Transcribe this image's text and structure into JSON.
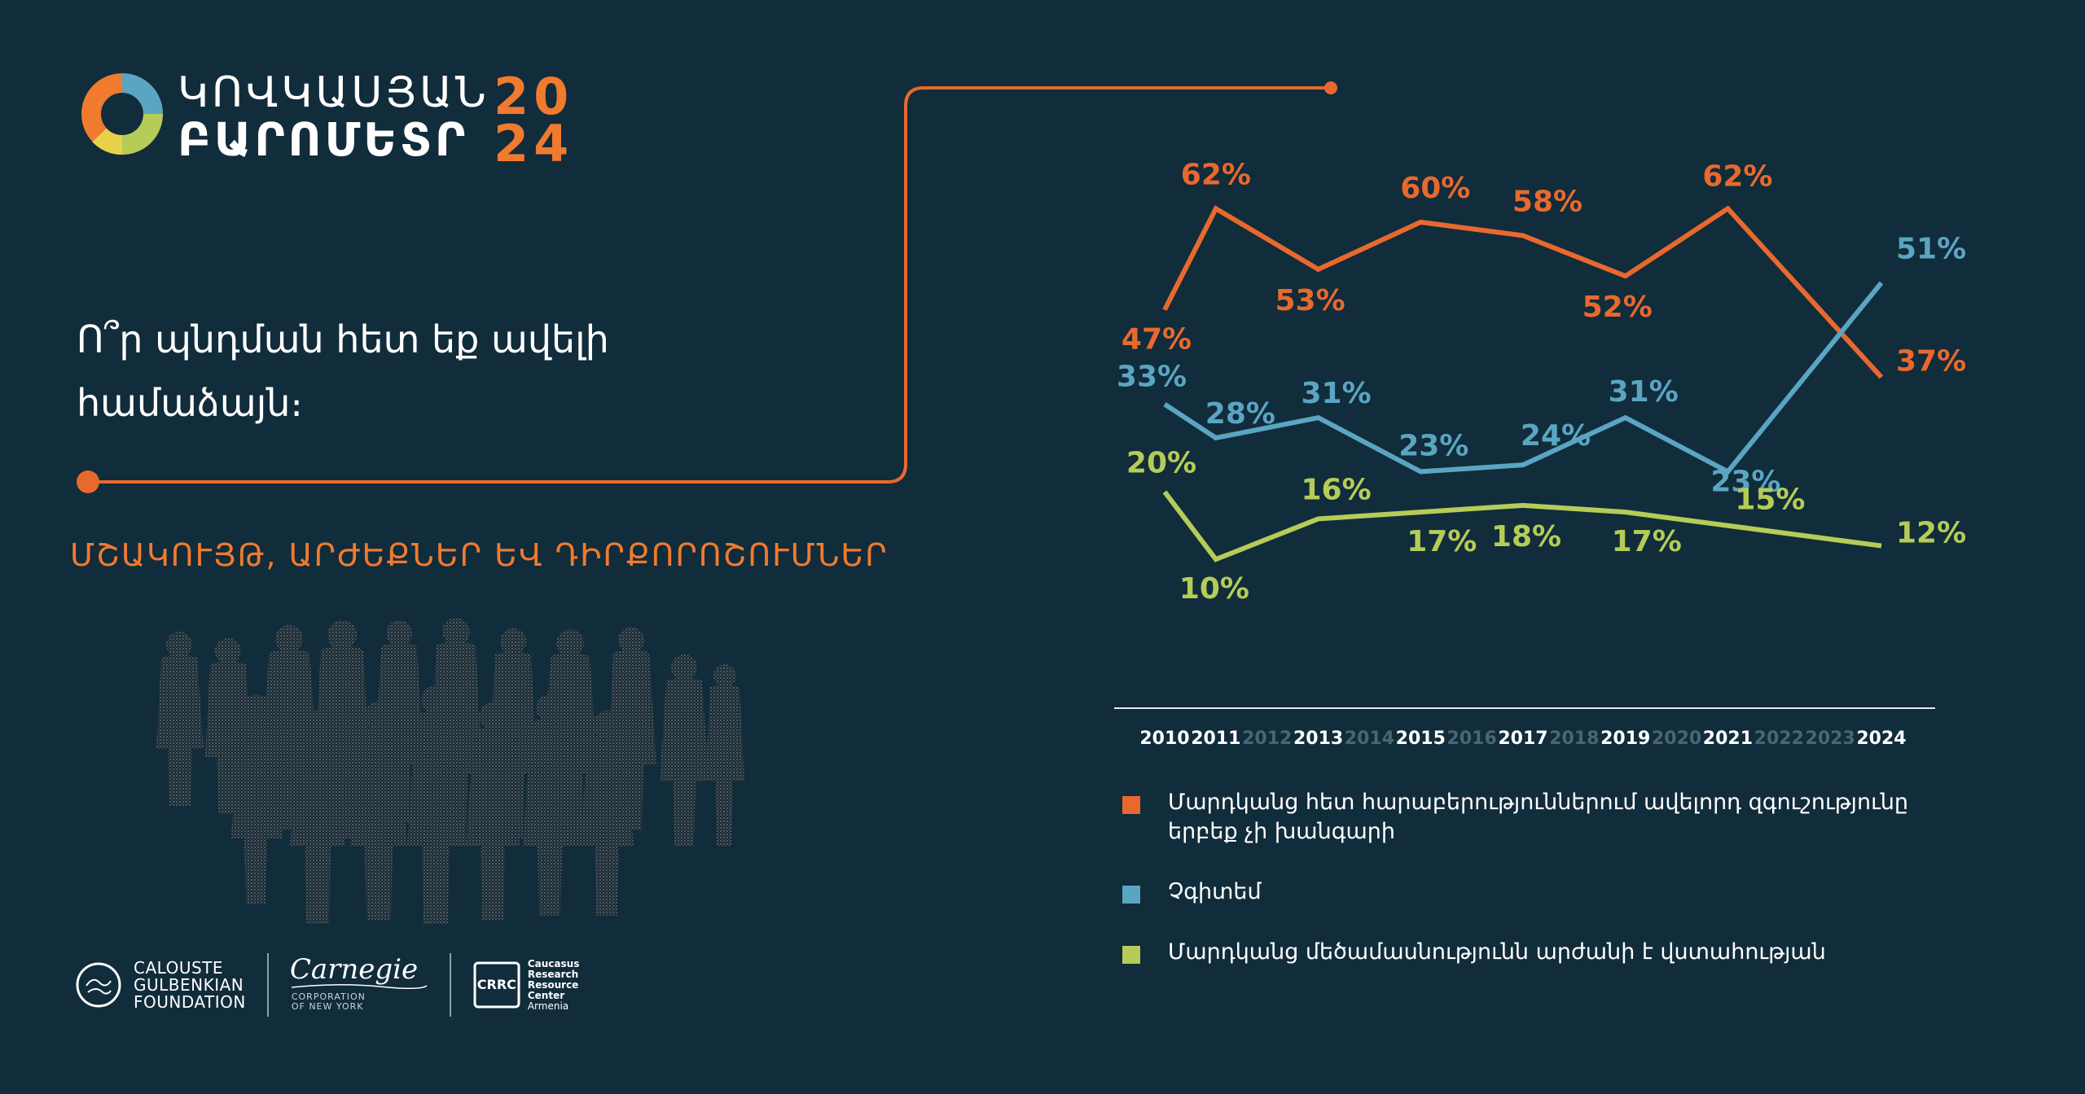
{
  "logo": {
    "line1": "ԿՈՎԿԱՍՅԱՆ",
    "line2": "ԲԱՐՈՄԵՏՐ",
    "year_top": "20",
    "year_bottom": "24"
  },
  "question": "Ո՞ր պնդման հետ եք ավելի համաձայն։",
  "section_title": "ՄՇԱԿՈՒՅԹ, ԱՐԺԵՔՆԵՐ ԵՎ ԴԻՐՔՈՐՈՇՈՒՄՆԵՐ",
  "sponsors": {
    "gulbenkian": [
      "CALOUSTE",
      "GULBENKIAN",
      "FOUNDATION"
    ],
    "carnegie_script": "Carnegie",
    "carnegie_sub": [
      "CORPORATION",
      "OF NEW YORK"
    ],
    "crrc_mark": "CRRC",
    "crrc": [
      "Caucasus",
      "Research",
      "Resource",
      "Center"
    ],
    "crrc_country": "Armenia"
  },
  "colors": {
    "background": "#112c3b",
    "orange": "#e8692d",
    "blue": "#5aa5c2",
    "green": "#b5cc57",
    "axis_muted": "#4a6573"
  },
  "chart_data": {
    "type": "line",
    "x": [
      2010,
      2011,
      2012,
      2013,
      2014,
      2015,
      2016,
      2017,
      2018,
      2019,
      2020,
      2021,
      2022,
      2023,
      2024
    ],
    "x_ticks_highlighted": [
      2010,
      2011,
      2013,
      2015,
      2017,
      2019,
      2021,
      2024
    ],
    "ylim": [
      0,
      70
    ],
    "grid": false,
    "legend_position": "bottom",
    "series": [
      {
        "name": "Մարդկանց հետ հարաբերություններում ավելորդ զգուշությունը երբեք չի խանգարի",
        "color": "orange",
        "x": [
          2010,
          2011,
          2013,
          2015,
          2017,
          2019,
          2021,
          2024
        ],
        "values": [
          47,
          62,
          53,
          60,
          58,
          52,
          62,
          37
        ],
        "labels": [
          "47%",
          "62%",
          "53%",
          "60%",
          "58%",
          "52%",
          "62%",
          "37%"
        ]
      },
      {
        "name": "Չգիտեմ",
        "color": "blue",
        "x": [
          2010,
          2011,
          2013,
          2015,
          2017,
          2019,
          2021,
          2024
        ],
        "values": [
          33,
          28,
          31,
          23,
          24,
          31,
          23,
          51
        ],
        "labels": [
          "33%",
          "28%",
          "31%",
          "23%",
          "24%",
          "31%",
          "23%",
          "51%"
        ]
      },
      {
        "name": "Մարդկանց մեծամասնությունն արժանի է վստահության",
        "color": "green",
        "x": [
          2010,
          2011,
          2013,
          2015,
          2017,
          2019,
          2021,
          2024
        ],
        "values": [
          20,
          10,
          16,
          17,
          18,
          17,
          15,
          12
        ],
        "labels": [
          "20%",
          "10%",
          "16%",
          "17%",
          "18%",
          "17%",
          "15%",
          "12%"
        ]
      }
    ]
  }
}
